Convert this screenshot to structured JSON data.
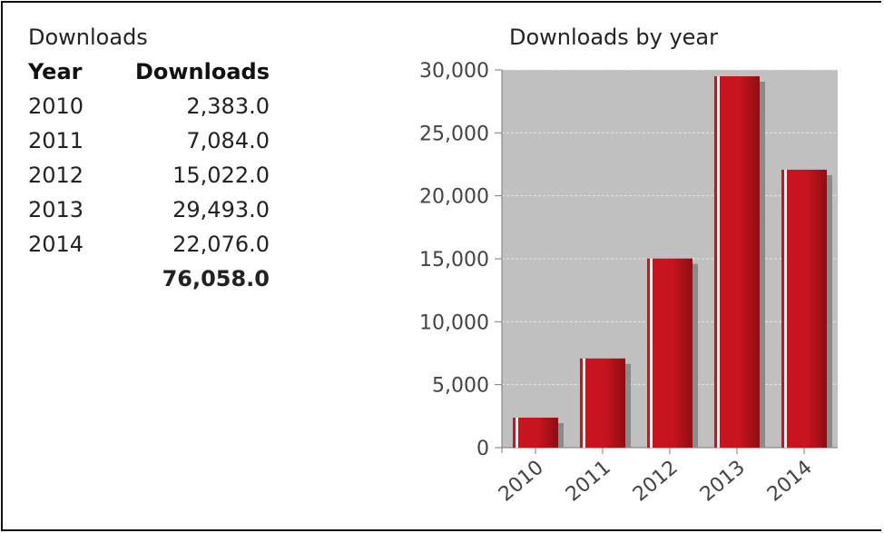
{
  "panel": {
    "title": "Downloads"
  },
  "table": {
    "headers": [
      "Year",
      "Downloads"
    ],
    "rows": [
      {
        "year": "2010",
        "downloads": "2,383.0"
      },
      {
        "year": "2011",
        "downloads": "7,084.0"
      },
      {
        "year": "2012",
        "downloads": "15,022.0"
      },
      {
        "year": "2013",
        "downloads": "29,493.0"
      },
      {
        "year": "2014",
        "downloads": "22,076.0"
      }
    ],
    "total": "76,058.0"
  },
  "chart_data": {
    "type": "bar",
    "title": "Downloads by year",
    "categories": [
      "2010",
      "2011",
      "2012",
      "2013",
      "2014"
    ],
    "values": [
      2383,
      7084,
      15022,
      29493,
      22076
    ],
    "ylim": [
      0,
      30000
    ],
    "yticks": [
      0,
      5000,
      10000,
      15000,
      20000,
      25000,
      30000
    ],
    "ytick_labels": [
      "0",
      "5,000",
      "10,000",
      "15,000",
      "20,000",
      "25,000",
      "30,000"
    ],
    "xlabel": "",
    "ylabel": "",
    "grid": true,
    "colors": {
      "bar": "#c8141e",
      "bar_dark": "#8e0d14",
      "bar_highlight": "#ffffff",
      "shadow": "#8a8a8a",
      "plot_bg": "#c0c0c0",
      "grid": "#e6e6e6",
      "axis": "#777777",
      "tick_text": "#444444"
    }
  }
}
